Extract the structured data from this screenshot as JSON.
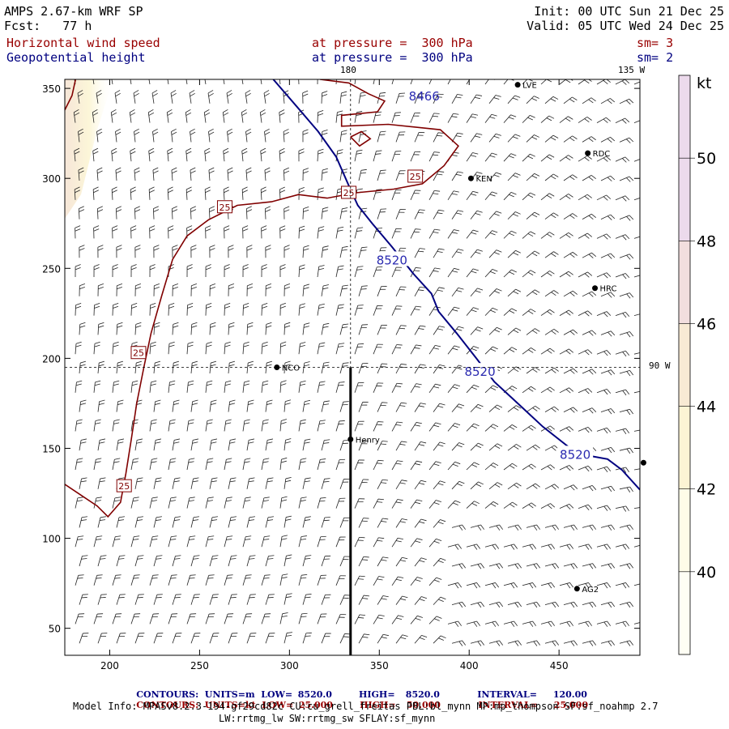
{
  "header": {
    "line1_left": "AMPS 2.67-km WRF SP",
    "line2_left": "Fcst:   77 h",
    "line1_right": "Init: 00 UTC Sun 21 Dec 25",
    "line2_right": "Valid: 05 UTC Wed 24 Dec 25",
    "field1_name": "Horizontal wind speed",
    "field1_level": "at pressure =  300 hPa",
    "field1_sm": "sm= 3",
    "field2_name": "Geopotential height",
    "field2_level": "at pressure =  300 hPa",
    "field2_sm": "sm= 2"
  },
  "map_labels": {
    "lon_180": "180",
    "lon_135w": "135 W",
    "lon_90w": "90 W"
  },
  "stations": [
    {
      "name": "LVE",
      "x": 427,
      "y": 352
    },
    {
      "name": "RDC",
      "x": 466,
      "y": 314
    },
    {
      "name": "KEN",
      "x": 401,
      "y": 300
    },
    {
      "name": "HRC",
      "x": 470,
      "y": 239
    },
    {
      "name": "NCO",
      "x": 293,
      "y": 195
    },
    {
      "name": "Henry",
      "x": 334,
      "y": 155
    },
    {
      "name": "AG2",
      "x": 460,
      "y": 72
    },
    {
      "name": "",
      "x": 497,
      "y": 142
    }
  ],
  "chart_data": {
    "type": "contour map with wind barbs",
    "xlim": [
      175,
      495
    ],
    "ylim": [
      35,
      355
    ],
    "x_ticks": [
      200,
      250,
      300,
      350,
      400,
      450
    ],
    "y_ticks": [
      50,
      100,
      150,
      200,
      250,
      300,
      350
    ],
    "grid_lon_180_x": 334,
    "grid_lon_90w_y": 195,
    "colorbar": {
      "unit": "kt",
      "ticks": [
        40,
        42,
        44,
        46,
        48,
        50
      ],
      "range": [
        38,
        52
      ],
      "colors": [
        "#fefef4",
        "#fefce8",
        "#fcf4d4",
        "#f8ead4",
        "#f2dede",
        "#ecdaec"
      ]
    },
    "height_contour": {
      "units": "m",
      "value": 8520.0,
      "label": "8520",
      "other_label": "8466",
      "points": [
        [
          291,
          355
        ],
        [
          304,
          340
        ],
        [
          316,
          326
        ],
        [
          326,
          312
        ],
        [
          333,
          296
        ],
        [
          338,
          285
        ],
        [
          346,
          275
        ],
        [
          357,
          262
        ],
        [
          369,
          247
        ],
        [
          379,
          236
        ],
        [
          383,
          226
        ],
        [
          393,
          214
        ],
        [
          404,
          200
        ],
        [
          414,
          187
        ],
        [
          427,
          175
        ],
        [
          441,
          162
        ],
        [
          455,
          151
        ],
        [
          466,
          146
        ],
        [
          477,
          144
        ],
        [
          485,
          138
        ],
        [
          495,
          127
        ]
      ]
    },
    "wind_contour": {
      "units": "kt",
      "value": 25.0,
      "label": "25",
      "main_points": [
        [
          175,
          130
        ],
        [
          184,
          124
        ],
        [
          193,
          118
        ],
        [
          199,
          112
        ],
        [
          206,
          120
        ],
        [
          209,
          136
        ],
        [
          212,
          155
        ],
        [
          215,
          175
        ],
        [
          219,
          195
        ],
        [
          223,
          214
        ],
        [
          229,
          235
        ],
        [
          235,
          255
        ],
        [
          243,
          268
        ],
        [
          255,
          277
        ],
        [
          271,
          285
        ],
        [
          290,
          287
        ],
        [
          305,
          291
        ],
        [
          321,
          289
        ],
        [
          337,
          292
        ],
        [
          358,
          294
        ],
        [
          374,
          297
        ],
        [
          386,
          307
        ],
        [
          394,
          318
        ],
        [
          384,
          327
        ],
        [
          355,
          330
        ],
        [
          329,
          329
        ],
        [
          329,
          335
        ],
        [
          349,
          337
        ],
        [
          353,
          343
        ],
        [
          344,
          347
        ],
        [
          333,
          353
        ],
        [
          317,
          355
        ]
      ],
      "inner_blob_points": [
        [
          334,
          323
        ],
        [
          339,
          318
        ],
        [
          345,
          322
        ],
        [
          340,
          326
        ],
        [
          334,
          323
        ]
      ],
      "left_blob_points": [
        [
          175,
          338
        ],
        [
          179,
          346
        ],
        [
          181,
          355
        ]
      ]
    },
    "footer": {
      "line1_prefix": "CONTOURS:  UNITS=m  LOW=",
      "line1_low": "8520.0",
      "line1_high_label": "HIGH=",
      "line1_high": "8520.0",
      "line1_interval_label": "INTERVAL=",
      "line1_interval": "120.00",
      "line2_prefix": "CONTOURS:  UNITS=kt  LOW=",
      "line2_low": "25.000",
      "line2_high_label": "HIGH=",
      "line2_high": "50.000",
      "line2_interval_label": "INTERVAL=",
      "line2_interval": "25.000",
      "model_info1": "Model Info: MPASv8.2.3-194-gf29cd82c CU:cu_grell_freitas PBL:bl_mynn MP:mp_thompson SF:sf_noahmp 2.7",
      "model_info2": "LW:rrtmg_lw SW:rrtmg_sw SFLAY:sf_mynn"
    }
  }
}
